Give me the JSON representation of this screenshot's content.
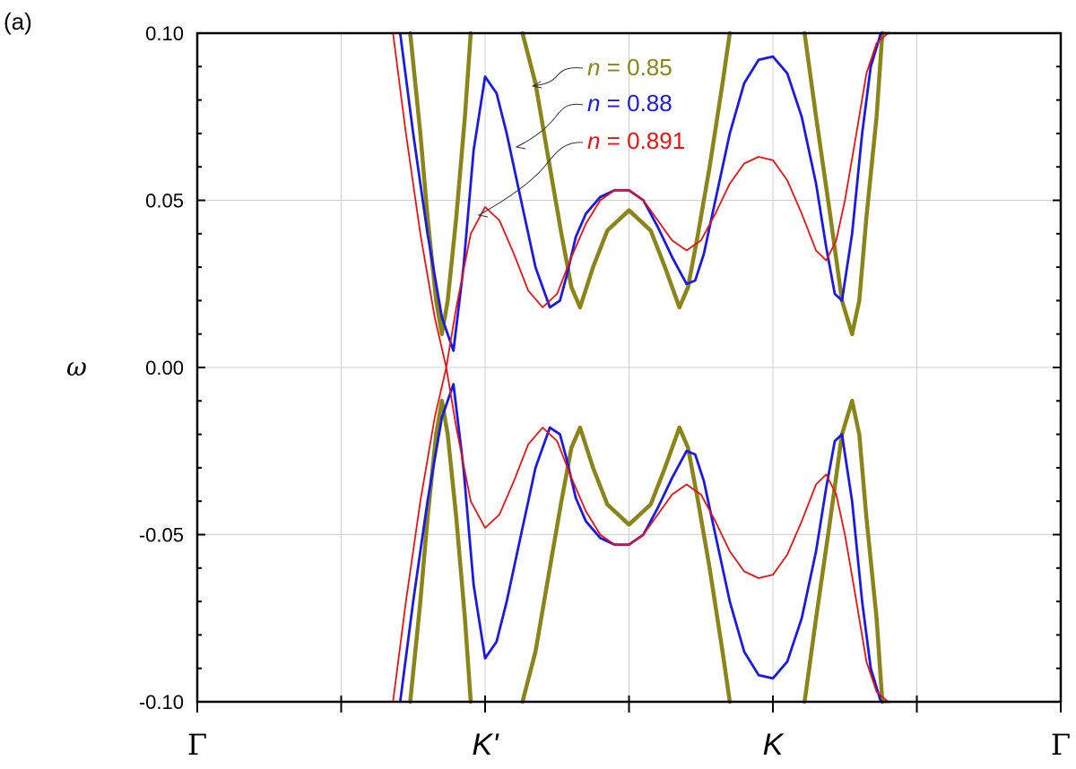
{
  "panel_label": "(a)",
  "colors": {
    "olive": "#8a8419",
    "blue": "#1a1ae6",
    "red": "#ee1111",
    "grid": "#cfcfcf",
    "axis": "#000000"
  },
  "chart_data": {
    "type": "line",
    "ylabel": "ω",
    "ylim": [
      -0.1,
      0.1
    ],
    "yticks": [
      0.1,
      0.05,
      0.0,
      -0.05,
      -0.1
    ],
    "ytick_labels": [
      "0.10",
      "0.05",
      "0.00",
      "-0.05",
      "-0.10"
    ],
    "xlim": [
      0,
      6
    ],
    "xticks": [
      0,
      2,
      3,
      4,
      6
    ],
    "xtick_labels": [
      "Γ",
      "K'",
      "",
      "K",
      "Γ"
    ],
    "grid": true,
    "legend_placement": "top-center",
    "series": [
      {
        "name": "n = 0.85",
        "n_label": "n",
        "eq": " = ",
        "value_label": "0.85",
        "color": "olive",
        "branches": [
          {
            "x": [
              1.48,
              1.55,
              1.6,
              1.66,
              1.7
            ],
            "y": [
              0.1,
              0.07,
              0.045,
              0.02,
              0.01
            ]
          },
          {
            "x": [
              1.7,
              1.74,
              1.8,
              1.86,
              1.9
            ],
            "y": [
              0.01,
              0.02,
              0.045,
              0.075,
              0.1
            ]
          },
          {
            "x": [
              2.26,
              2.35,
              2.45,
              2.53,
              2.6,
              2.66
            ],
            "y": [
              0.1,
              0.085,
              0.06,
              0.04,
              0.024,
              0.018
            ]
          },
          {
            "x": [
              2.66,
              2.75,
              2.85,
              3.0,
              3.15,
              3.25,
              3.35
            ],
            "y": [
              0.018,
              0.03,
              0.041,
              0.047,
              0.041,
              0.03,
              0.018
            ]
          },
          {
            "x": [
              3.35,
              3.41,
              3.48,
              3.56,
              3.65,
              3.7
            ],
            "y": [
              0.018,
              0.024,
              0.04,
              0.06,
              0.085,
              0.1
            ]
          },
          {
            "x": [
              4.22,
              4.3,
              4.4,
              4.48,
              4.55
            ],
            "y": [
              0.1,
              0.075,
              0.045,
              0.02,
              0.01
            ]
          },
          {
            "x": [
              4.55,
              4.6,
              4.65,
              4.72,
              4.76
            ],
            "y": [
              0.01,
              0.02,
              0.045,
              0.075,
              0.1
            ]
          },
          {
            "x": [
              1.48,
              1.55,
              1.6,
              1.66,
              1.7
            ],
            "y": [
              -0.1,
              -0.07,
              -0.045,
              -0.02,
              -0.01
            ]
          },
          {
            "x": [
              1.7,
              1.74,
              1.8,
              1.86,
              1.9
            ],
            "y": [
              -0.01,
              -0.02,
              -0.045,
              -0.075,
              -0.1
            ]
          },
          {
            "x": [
              2.26,
              2.35,
              2.45,
              2.53,
              2.6,
              2.66
            ],
            "y": [
              -0.1,
              -0.085,
              -0.06,
              -0.04,
              -0.024,
              -0.018
            ]
          },
          {
            "x": [
              2.66,
              2.75,
              2.85,
              3.0,
              3.15,
              3.25,
              3.35
            ],
            "y": [
              -0.018,
              -0.03,
              -0.041,
              -0.047,
              -0.041,
              -0.03,
              -0.018
            ]
          },
          {
            "x": [
              3.35,
              3.41,
              3.48,
              3.56,
              3.65,
              3.7
            ],
            "y": [
              -0.018,
              -0.024,
              -0.04,
              -0.06,
              -0.085,
              -0.1
            ]
          },
          {
            "x": [
              4.22,
              4.3,
              4.4,
              4.48,
              4.55
            ],
            "y": [
              -0.1,
              -0.075,
              -0.045,
              -0.02,
              -0.01
            ]
          },
          {
            "x": [
              4.55,
              4.6,
              4.65,
              4.72,
              4.76
            ],
            "y": [
              -0.01,
              -0.02,
              -0.045,
              -0.075,
              -0.1
            ]
          }
        ]
      },
      {
        "name": "n = 0.88",
        "n_label": "n",
        "eq": " = ",
        "value_label": "0.88",
        "color": "blue",
        "branches": [
          {
            "x": [
              1.41,
              1.5,
              1.6,
              1.7,
              1.78,
              1.85,
              1.92,
              2.0,
              2.08,
              2.15,
              2.25,
              2.35,
              2.45,
              2.52,
              2.57,
              2.63,
              2.7,
              2.8,
              2.9,
              3.0,
              3.1,
              3.2,
              3.3,
              3.4,
              3.46,
              3.52,
              3.6,
              3.7,
              3.8,
              3.9,
              4.0,
              4.1,
              4.2,
              4.3,
              4.37,
              4.43,
              4.48,
              4.55,
              4.62,
              4.68,
              4.75,
              4.81
            ],
            "y": [
              0.1,
              0.07,
              0.04,
              0.015,
              0.005,
              0.03,
              0.065,
              0.087,
              0.082,
              0.07,
              0.05,
              0.03,
              0.018,
              0.02,
              0.028,
              0.039,
              0.046,
              0.051,
              0.053,
              0.053,
              0.05,
              0.042,
              0.033,
              0.025,
              0.026,
              0.034,
              0.05,
              0.07,
              0.085,
              0.092,
              0.093,
              0.088,
              0.075,
              0.055,
              0.036,
              0.022,
              0.02,
              0.04,
              0.07,
              0.09,
              0.1,
              0.1
            ]
          },
          {
            "x": [
              1.41,
              1.5,
              1.6,
              1.7,
              1.78,
              1.85,
              1.92,
              2.0,
              2.08,
              2.15,
              2.25,
              2.35,
              2.45,
              2.52,
              2.57,
              2.63,
              2.7,
              2.8,
              2.9,
              3.0,
              3.1,
              3.2,
              3.3,
              3.4,
              3.46,
              3.52,
              3.6,
              3.7,
              3.8,
              3.9,
              4.0,
              4.1,
              4.2,
              4.3,
              4.37,
              4.43,
              4.48,
              4.55,
              4.62,
              4.68,
              4.75,
              4.81
            ],
            "y": [
              -0.1,
              -0.07,
              -0.04,
              -0.015,
              -0.005,
              -0.03,
              -0.065,
              -0.087,
              -0.082,
              -0.07,
              -0.05,
              -0.03,
              -0.018,
              -0.02,
              -0.028,
              -0.039,
              -0.046,
              -0.051,
              -0.053,
              -0.053,
              -0.05,
              -0.042,
              -0.033,
              -0.025,
              -0.026,
              -0.034,
              -0.05,
              -0.07,
              -0.085,
              -0.092,
              -0.093,
              -0.088,
              -0.075,
              -0.055,
              -0.036,
              -0.022,
              -0.02,
              -0.04,
              -0.07,
              -0.09,
              -0.1,
              -0.1
            ]
          }
        ]
      },
      {
        "name": "n = 0.891",
        "n_label": "n",
        "eq": " = ",
        "value_label": "0.891",
        "color": "red",
        "branches": [
          {
            "x": [
              1.36,
              1.45,
              1.55,
              1.65,
              1.73,
              1.8,
              1.9,
              2.0,
              2.1,
              2.2,
              2.3,
              2.4,
              2.5,
              2.6,
              2.7,
              2.8,
              2.9,
              3.0,
              3.1,
              3.2,
              3.3,
              3.4,
              3.5,
              3.6,
              3.7,
              3.8,
              3.9,
              4.0,
              4.1,
              4.2,
              4.3,
              4.37,
              4.44,
              4.5,
              4.58,
              4.65,
              4.72,
              4.8,
              4.86
            ],
            "y": [
              0.1,
              0.07,
              0.04,
              0.015,
              0.0,
              0.018,
              0.04,
              0.048,
              0.044,
              0.034,
              0.023,
              0.018,
              0.022,
              0.033,
              0.043,
              0.05,
              0.053,
              0.053,
              0.05,
              0.044,
              0.038,
              0.035,
              0.038,
              0.046,
              0.055,
              0.061,
              0.063,
              0.062,
              0.056,
              0.046,
              0.035,
              0.032,
              0.038,
              0.05,
              0.07,
              0.088,
              0.097,
              0.1,
              0.1
            ]
          },
          {
            "x": [
              1.36,
              1.45,
              1.55,
              1.65,
              1.73,
              1.8,
              1.9,
              2.0,
              2.1,
              2.2,
              2.3,
              2.4,
              2.5,
              2.6,
              2.7,
              2.8,
              2.9,
              3.0,
              3.1,
              3.2,
              3.3,
              3.4,
              3.5,
              3.6,
              3.7,
              3.8,
              3.9,
              4.0,
              4.1,
              4.2,
              4.3,
              4.37,
              4.44,
              4.5,
              4.58,
              4.65,
              4.72,
              4.8,
              4.86
            ],
            "y": [
              -0.1,
              -0.07,
              -0.04,
              -0.015,
              0.0,
              -0.018,
              -0.04,
              -0.048,
              -0.044,
              -0.034,
              -0.023,
              -0.018,
              -0.022,
              -0.033,
              -0.043,
              -0.05,
              -0.053,
              -0.053,
              -0.05,
              -0.044,
              -0.038,
              -0.035,
              -0.038,
              -0.046,
              -0.055,
              -0.061,
              -0.063,
              -0.062,
              -0.056,
              -0.046,
              -0.035,
              -0.032,
              -0.038,
              -0.05,
              -0.07,
              -0.088,
              -0.097,
              -0.1,
              -0.1
            ]
          }
        ]
      }
    ]
  }
}
